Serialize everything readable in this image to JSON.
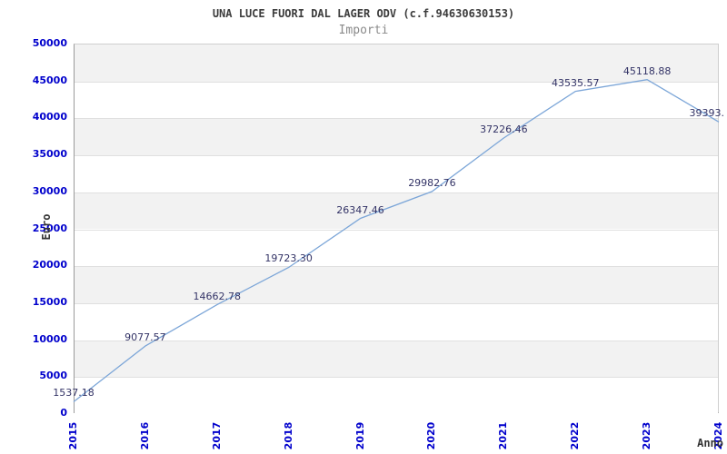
{
  "header": {
    "title": "UNA LUCE FUORI DAL LAGER ODV (c.f.94630630153)",
    "subtitle": "Importi"
  },
  "axes": {
    "y_label": "Euro",
    "x_label": "Anno"
  },
  "chart_data": {
    "type": "line",
    "title": "UNA LUCE FUORI DAL LAGER ODV (c.f.94630630153)",
    "subtitle": "Importi",
    "xlabel": "Anno",
    "ylabel": "Euro",
    "categories": [
      "2015",
      "2016",
      "2017",
      "2018",
      "2019",
      "2020",
      "2021",
      "2022",
      "2023",
      "2024"
    ],
    "values": [
      1537.18,
      9077.57,
      14662.78,
      19723.3,
      26347.46,
      29982.76,
      37226.46,
      43535.57,
      45118.88,
      39393
    ],
    "point_labels": [
      "1537.18",
      "9077.57",
      "14662.78",
      "19723.30",
      "26347.46",
      "29982.76",
      "37226.46",
      "43535.57",
      "45118.88",
      "39393."
    ],
    "ylim": [
      0,
      50000
    ],
    "ytick_step": 5000,
    "yticks": [
      "0",
      "5000",
      "10000",
      "15000",
      "20000",
      "25000",
      "30000",
      "35000",
      "40000",
      "45000",
      "50000"
    ],
    "grid": "horizontal",
    "banded_background": true,
    "legend": "none",
    "colors": {
      "line": "#7ca6d8",
      "band_gray": "#f2f2f2",
      "band_white": "#ffffff",
      "gridline": "#e0e0e0",
      "tick_label": "#0000cc",
      "point_label": "#333366",
      "axis_title": "#333333",
      "title": "#3c3c3c",
      "subtitle": "#8a8a8a"
    }
  }
}
